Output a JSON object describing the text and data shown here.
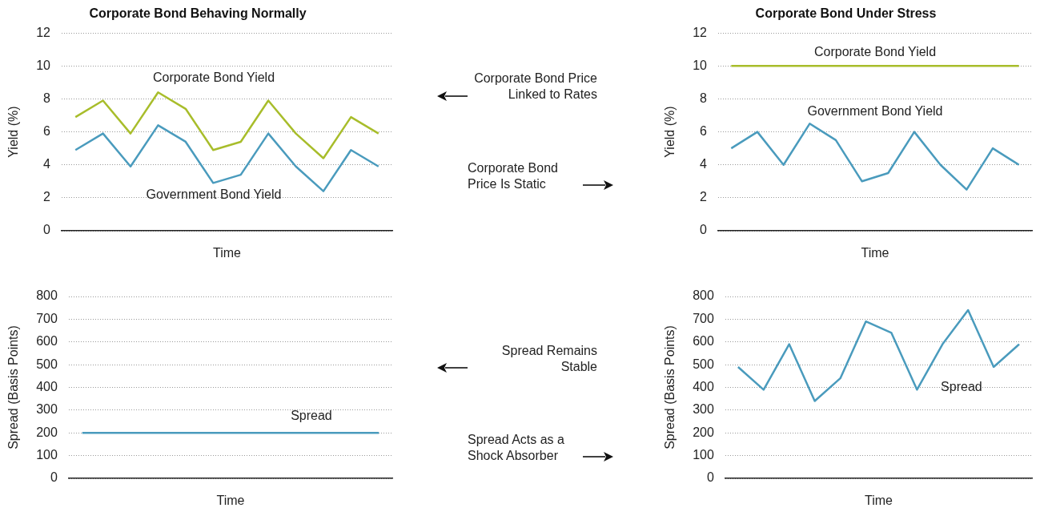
{
  "chart_data": [
    {
      "type": "line",
      "title": "Corporate Bond Behaving Normally",
      "xlabel": "Time",
      "ylabel": "Yield (%)",
      "categories": [
        null,
        null,
        null,
        null,
        null,
        null,
        null,
        null,
        null,
        null,
        null,
        null
      ],
      "ylim": [
        0,
        12
      ],
      "yticks": [
        0,
        2,
        4,
        6,
        8,
        10,
        12
      ],
      "grid": "y",
      "legend": false,
      "marker": "none",
      "series": [
        {
          "name": "Corporate Bond Yield",
          "color": "#a8bd2b",
          "values": [
            6.9,
            7.9,
            5.9,
            8.4,
            7.4,
            4.9,
            5.4,
            7.9,
            5.9,
            4.4,
            6.9,
            5.9
          ]
        },
        {
          "name": "Government Bond Yield",
          "color": "#4a9bbd",
          "values": [
            4.9,
            5.9,
            3.9,
            6.4,
            5.4,
            2.9,
            3.4,
            5.9,
            3.9,
            2.4,
            4.9,
            3.9
          ]
        }
      ]
    },
    {
      "type": "line",
      "title": "Corporate Bond Under Stress",
      "xlabel": "Time",
      "ylabel": "Yield (%)",
      "categories": [
        null,
        null,
        null,
        null,
        null,
        null,
        null,
        null,
        null,
        null,
        null,
        null
      ],
      "ylim": [
        0,
        12
      ],
      "yticks": [
        0,
        2,
        4,
        6,
        8,
        10,
        12
      ],
      "grid": "y",
      "legend": false,
      "marker": "none",
      "series": [
        {
          "name": "Corporate Bond Yield",
          "color": "#a8bd2b",
          "values": [
            10,
            10,
            10,
            10,
            10,
            10,
            10,
            10,
            10,
            10,
            10,
            10
          ]
        },
        {
          "name": "Government Bond Yield",
          "color": "#4a9bbd",
          "values": [
            5,
            6,
            4,
            6.5,
            5.5,
            3,
            3.5,
            6,
            4,
            2.5,
            5,
            4
          ]
        }
      ]
    },
    {
      "type": "line",
      "xlabel": "Time",
      "ylabel": "Spread (Basis Points)",
      "categories": [
        null,
        null,
        null,
        null,
        null,
        null,
        null,
        null,
        null,
        null,
        null,
        null
      ],
      "ylim": [
        0,
        800
      ],
      "yticks": [
        0,
        100,
        200,
        300,
        400,
        500,
        600,
        700,
        800
      ],
      "grid": "y",
      "legend": false,
      "marker": "none",
      "series": [
        {
          "name": "Spread",
          "color": "#4a9bbd",
          "values": [
            200,
            200,
            200,
            200,
            200,
            200,
            200,
            200,
            200,
            200,
            200,
            200
          ]
        }
      ]
    },
    {
      "type": "line",
      "xlabel": "Time",
      "ylabel": "Spread (Basis Points)",
      "categories": [
        null,
        null,
        null,
        null,
        null,
        null,
        null,
        null,
        null,
        null,
        null,
        null
      ],
      "ylim": [
        0,
        800
      ],
      "yticks": [
        0,
        100,
        200,
        300,
        400,
        500,
        600,
        700,
        800
      ],
      "grid": "y",
      "legend": false,
      "marker": "none",
      "series": [
        {
          "name": "Spread",
          "color": "#4a9bbd",
          "values": [
            490,
            390,
            590,
            340,
            440,
            690,
            640,
            390,
            590,
            740,
            490,
            590
          ]
        }
      ]
    },
    {
      "type": "other",
      "annotations": [
        "Corporate Bond Price Linked to Rates",
        "Corporate Bond Price Is Static",
        "Spread Remains Stable",
        "Spread Acts as a Shock Absorber"
      ]
    }
  ]
}
